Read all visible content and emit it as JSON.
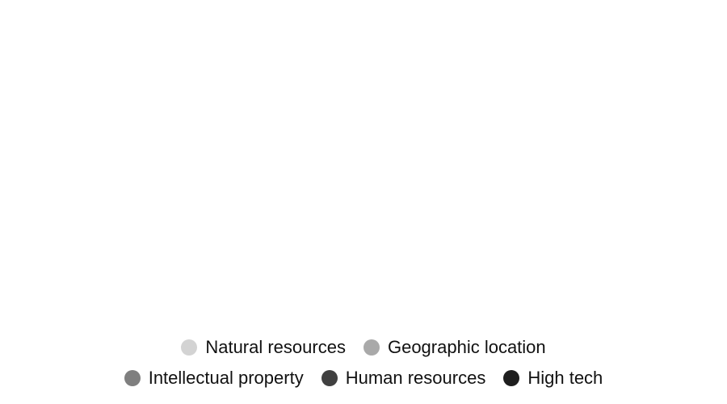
{
  "chart_data": {
    "type": "pie",
    "title": "",
    "legend_position": "bottom",
    "series": [
      {
        "name": "Natural resources",
        "color": "#d3d3d3"
      },
      {
        "name": "Geographic location",
        "color": "#a9a9a9"
      },
      {
        "name": "Intellectual property",
        "color": "#7f7f7f"
      },
      {
        "name": "Human resources",
        "color": "#404040"
      },
      {
        "name": "High tech",
        "color": "#1e1e1e"
      }
    ]
  }
}
